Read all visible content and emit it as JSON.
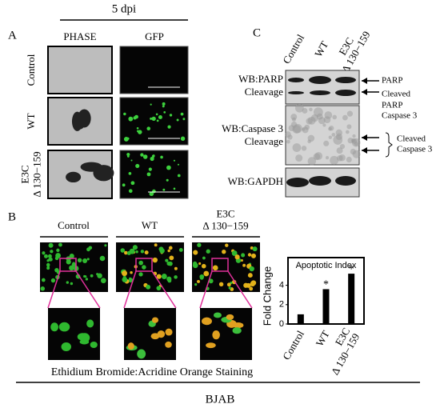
{
  "panel_a": {
    "label": "A",
    "header": "5 dpi",
    "columns": [
      "PHASE",
      "GFP"
    ],
    "rows": [
      [
        "Control"
      ],
      [
        "WT"
      ],
      [
        "E3C",
        "Δ 130−159"
      ]
    ]
  },
  "panel_c": {
    "label": "C",
    "columns": [
      [
        "Control"
      ],
      [
        "WT"
      ],
      [
        "E3C",
        "Δ 130−159"
      ]
    ],
    "left_labels": [
      [
        "WB:PARP",
        "Cleavage"
      ],
      [
        "WB:Caspase 3",
        "Cleavage"
      ],
      [
        "WB:GAPDH"
      ]
    ],
    "right_labels": [
      [
        "PARP"
      ],
      [
        "Cleaved"
      ],
      [
        "PARP",
        "Caspase 3"
      ],
      [
        "Cleaved",
        "Caspase 3"
      ]
    ]
  },
  "panel_b": {
    "label": "B",
    "columns": [
      [
        "Control"
      ],
      [
        "WT"
      ],
      [
        "E3C",
        "Δ 130−159"
      ]
    ],
    "caption": "Ethidium Bromide:Acridine Orange Staining",
    "footer": "BJAB"
  },
  "chart_data": {
    "type": "bar",
    "title": "Apoptotic Index",
    "y_label": "Fold Change",
    "categories": [
      [
        "Control"
      ],
      [
        "WT"
      ],
      [
        "E3C",
        "Δ 130−159"
      ]
    ],
    "values": [
      1,
      3.6,
      5.2
    ],
    "value_annotations": [
      null,
      "*",
      "*"
    ],
    "color": "#000000",
    "ylim": [
      0,
      6.2
    ],
    "yticks": [
      0,
      2,
      4
    ]
  }
}
